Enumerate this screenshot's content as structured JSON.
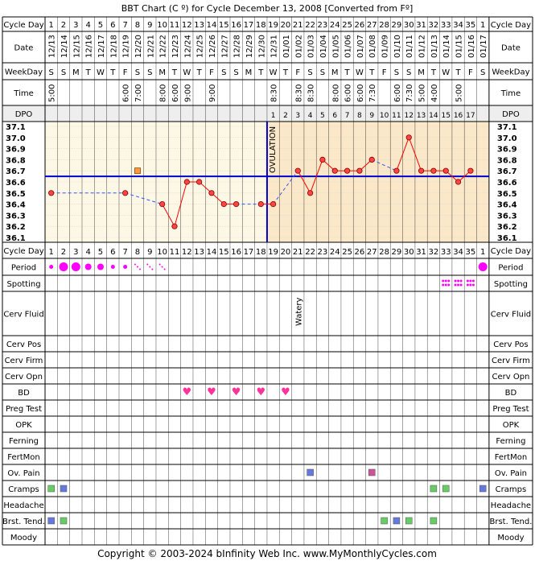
{
  "title": "BBT Chart (C º) for Cycle December 13, 2008  [Converted from Fº]",
  "copyright": "Copyright © 2003-2024 bInfinity Web Inc.     www.MyMonthlyCycles.com",
  "labels": {
    "cycle_day": "Cycle Day",
    "date": "Date",
    "weekday": "WeekDay",
    "time": "Time",
    "dpo": "DPO",
    "period": "Period",
    "spotting": "Spotting",
    "cerv_fluid": "Cerv Fluid",
    "cerv_pos": "Cerv Pos",
    "cerv_firm": "Cerv Firm",
    "cerv_opn": "Cerv Opn",
    "bd": "BD",
    "preg_test": "Preg Test",
    "opk": "OPK",
    "ferning": "Ferning",
    "fertmon": "FertMon",
    "ov_pain": "Ov. Pain",
    "cramps": "Cramps",
    "headache": "Headache",
    "brst_tend": "Brst. Tend.",
    "moody": "Moody",
    "ovulation": "OVULATION",
    "watery": "Watery"
  },
  "colors": {
    "grid": "#000000",
    "pre_ovulation_bg": "#fdf8e6",
    "post_ovulation_bg": "#fae8c8",
    "coverline": "#0000cc",
    "ovulation_line": "#0000cc",
    "temp_line": "#ff0000",
    "temp_dash": "#3355ff",
    "point_fill": "#ff4444",
    "period": "#ff00ff",
    "heart": "#ff3399",
    "blue_box": "#6677dd",
    "green_box": "#66cc66",
    "pink_box": "#cc5599",
    "label_bg": "#eeeeee",
    "dpo_bg": "#eeeeee",
    "temp_axis_bg": "#ffffff"
  },
  "chart_data": {
    "type": "line",
    "cycle_days": [
      1,
      2,
      3,
      4,
      5,
      6,
      7,
      8,
      9,
      10,
      11,
      12,
      13,
      14,
      15,
      16,
      17,
      18,
      19,
      20,
      21,
      22,
      23,
      24,
      25,
      26,
      27,
      28,
      29,
      30,
      31,
      32,
      33,
      34,
      35,
      1
    ],
    "dates": [
      "12/13",
      "12/14",
      "12/15",
      "12/16",
      "12/17",
      "12/18",
      "12/19",
      "12/20",
      "12/21",
      "12/22",
      "12/23",
      "12/24",
      "12/25",
      "12/26",
      "12/27",
      "12/28",
      "12/29",
      "12/30",
      "12/31",
      "01/01",
      "01/02",
      "01/03",
      "01/04",
      "01/05",
      "01/06",
      "01/07",
      "01/08",
      "01/09",
      "01/10",
      "01/11",
      "01/12",
      "01/13",
      "01/14",
      "01/15",
      "01/16",
      "01/17"
    ],
    "weekdays": [
      "S",
      "S",
      "M",
      "T",
      "W",
      "T",
      "F",
      "S",
      "S",
      "M",
      "T",
      "W",
      "T",
      "F",
      "S",
      "S",
      "M",
      "T",
      "W",
      "T",
      "F",
      "S",
      "S",
      "M",
      "T",
      "W",
      "T",
      "F",
      "S",
      "S",
      "M",
      "T",
      "W",
      "T",
      "F",
      "S"
    ],
    "times": [
      "5:00",
      "",
      "",
      "",
      "",
      "",
      "6:00",
      "7:00",
      "",
      "8:00",
      "6:00",
      "9:00",
      "",
      "9:00",
      "",
      "",
      "",
      "",
      "8:30",
      "",
      "8:30",
      "8:30",
      "",
      "8:00",
      "6:00",
      "6:00",
      "7:30",
      "",
      "6:00",
      "7:30",
      "5:00",
      "4:00",
      "",
      "5:00",
      "",
      ""
    ],
    "dpo": [
      "",
      "",
      "",
      "",
      "",
      "",
      "",
      "",
      "",
      "",
      "",
      "",
      "",
      "",
      "",
      "",
      "",
      "",
      "1",
      "2",
      "3",
      "4",
      "5",
      "6",
      "7",
      "8",
      "9",
      "10",
      "11",
      "12",
      "13",
      "14",
      "15",
      "16",
      "17",
      ""
    ],
    "y_ticks": [
      37.1,
      37.0,
      36.9,
      36.8,
      36.7,
      36.6,
      36.5,
      36.4,
      36.3,
      36.2,
      36.1
    ],
    "ylim": [
      36.1,
      37.1
    ],
    "temps": [
      36.5,
      null,
      null,
      null,
      null,
      null,
      36.5,
      null,
      null,
      36.4,
      36.2,
      36.6,
      36.6,
      36.5,
      36.4,
      36.4,
      null,
      36.4,
      36.4,
      null,
      36.7,
      36.5,
      36.8,
      36.7,
      36.7,
      36.7,
      36.8,
      null,
      36.7,
      37.0,
      36.7,
      36.7,
      36.7,
      36.6,
      36.7,
      null
    ],
    "discarded": [
      {
        "day_index": 7,
        "temp": 36.7
      }
    ],
    "coverline": 36.65,
    "ovulation_after_day": 18
  },
  "rows": {
    "period": [
      "small",
      "large",
      "large",
      "medium",
      "medium",
      "small",
      "small",
      "dots",
      "dots",
      "dots",
      "",
      "",
      "",
      "",
      "",
      "",
      "",
      "",
      "",
      "",
      "",
      "",
      "",
      "",
      "",
      "",
      "",
      "",
      "",
      "",
      "",
      "",
      "",
      "",
      "",
      "large"
    ],
    "spotting": [
      "",
      "",
      "",
      "",
      "",
      "",
      "",
      "",
      "",
      "",
      "",
      "",
      "",
      "",
      "",
      "",
      "",
      "",
      "",
      "",
      "",
      "",
      "",
      "",
      "",
      "",
      "",
      "",
      "",
      "",
      "",
      "",
      "",
      "",
      "",
      ""
    ],
    "spotting_days": [
      33,
      34,
      35
    ],
    "cerv_fluid_watery_day": 21,
    "bd_days": [
      12,
      14,
      16,
      18,
      20
    ],
    "ov_pain": [
      {
        "day": 22,
        "color": "blue"
      },
      {
        "day": 27,
        "color": "pink"
      }
    ],
    "cramps": [
      {
        "day": 1,
        "color": "green"
      },
      {
        "day": 2,
        "color": "blue"
      },
      {
        "day": 32,
        "color": "green"
      },
      {
        "day": 33,
        "color": "green"
      },
      {
        "day": 36,
        "color": "blue"
      }
    ],
    "brst_tend": [
      {
        "day": 1,
        "color": "blue"
      },
      {
        "day": 2,
        "color": "green"
      },
      {
        "day": 28,
        "color": "green"
      },
      {
        "day": 29,
        "color": "blue"
      },
      {
        "day": 30,
        "color": "green"
      },
      {
        "day": 32,
        "color": "green"
      }
    ]
  }
}
